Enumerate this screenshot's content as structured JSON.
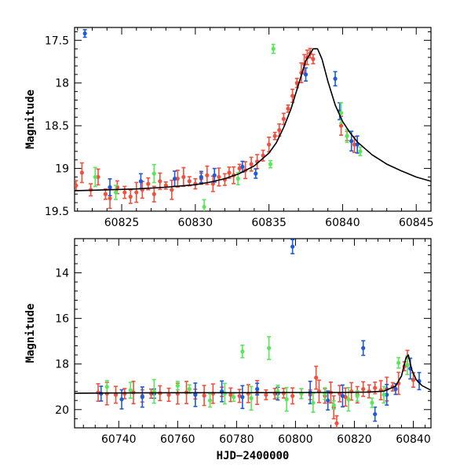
{
  "chart_data": [
    {
      "type": "scatter",
      "panel": "top",
      "xlabel": "",
      "ylabel": "Magnitude",
      "xlim": [
        60821.8,
        60846
      ],
      "ylim": [
        19.5,
        17.35
      ],
      "y_inverted": true,
      "x_ticks": [
        60825,
        60830,
        60835,
        60840,
        60845
      ],
      "y_ticks": [
        17.5,
        18,
        18.5,
        19,
        19.5
      ],
      "y_tick_labels": [
        "17.5",
        "18",
        "18.5",
        "19",
        "19.5"
      ],
      "colors": {
        "red": "#f0503c",
        "blue": "#1e5adc",
        "green": "#5ae65a",
        "model": "#000000"
      },
      "model_curve": {
        "x": [
          60821.8,
          60824,
          60826,
          60828,
          60830,
          60831,
          60832,
          60833,
          60834,
          60835,
          60835.5,
          60836,
          60836.5,
          60837,
          60837.5,
          60838,
          60838.3,
          60838.6,
          60839,
          60839.5,
          60840,
          60840.5,
          60841,
          60842,
          60843,
          60844,
          60845,
          60846
        ],
        "y": [
          19.26,
          19.25,
          19.24,
          19.22,
          19.19,
          19.16,
          19.12,
          19.06,
          18.97,
          18.82,
          18.7,
          18.52,
          18.3,
          18.02,
          17.74,
          17.6,
          17.6,
          17.72,
          17.98,
          18.26,
          18.45,
          18.58,
          18.69,
          18.84,
          18.95,
          19.03,
          19.1,
          19.15
        ]
      },
      "series": [
        {
          "color_key": "red",
          "x": [
            60821.9,
            60822.3,
            60822.9,
            60823.4,
            60823.9,
            60824.2,
            60824.7,
            60825.2,
            60825.6,
            60826,
            60826.4,
            60826.8,
            60827.2,
            60827.6,
            60828,
            60828.4,
            60828.8,
            60829.2,
            60829.6,
            60830,
            60830.4,
            60830.8,
            60831.2,
            60831.6,
            60832,
            60832.3,
            60832.6,
            60833,
            60833.4,
            60833.8,
            60834.2,
            60834.6,
            60835,
            60835.4,
            60835.7,
            60836,
            60836.3,
            60836.6,
            60836.9,
            60837.2,
            60837.4,
            60837.6,
            60837.8,
            60838,
            60839.9,
            60840.3,
            60840.8
          ],
          "y": [
            19.2,
            19.05,
            19.25,
            19.1,
            19.3,
            19.35,
            19.22,
            19.28,
            19.33,
            19.28,
            19.25,
            19.18,
            19.3,
            19.15,
            19.2,
            19.25,
            19.12,
            19.1,
            19.15,
            19.18,
            19.12,
            19.08,
            19.18,
            19.1,
            19.13,
            19.05,
            19.08,
            19.0,
            19.02,
            18.95,
            18.92,
            18.85,
            18.72,
            18.62,
            18.55,
            18.42,
            18.3,
            18.15,
            18.0,
            17.88,
            17.78,
            17.7,
            17.65,
            17.72,
            18.5,
            18.62,
            18.72
          ]
        },
        {
          "color_key": "blue",
          "x": [
            60822.5,
            60824.2,
            60826.3,
            60828.6,
            60830.4,
            60831.3,
            60833.2,
            60834.1,
            60837.5,
            60839.5,
            60839.8,
            60840.6,
            60841
          ],
          "y": [
            17.42,
            19.22,
            19.15,
            19.12,
            19.1,
            19.08,
            18.98,
            19.06,
            17.9,
            17.95,
            18.33,
            18.68,
            18.72
          ]
        },
        {
          "color_key": "green",
          "x": [
            60823.2,
            60824.6,
            60827.2,
            60830.6,
            60832.9,
            60835.1,
            60835.3,
            60839.9,
            60840.3,
            60841.2
          ],
          "y": [
            19.1,
            19.28,
            19.06,
            19.45,
            19.12,
            18.95,
            17.6,
            18.35,
            18.62,
            18.8
          ]
        }
      ]
    },
    {
      "type": "scatter",
      "panel": "bottom",
      "xlabel": "HJD−2400000",
      "ylabel": "Magnitude",
      "xlim": [
        60725,
        60846
      ],
      "ylim": [
        20.8,
        12.5
      ],
      "y_inverted": true,
      "x_ticks": [
        60740,
        60760,
        60780,
        60800,
        60820,
        60840
      ],
      "y_ticks": [
        14,
        16,
        18,
        20
      ],
      "y_tick_labels": [
        "14",
        "16",
        "18",
        "20"
      ],
      "colors": {
        "red": "#f0503c",
        "blue": "#1e5adc",
        "green": "#5ae65a",
        "model": "#000000"
      },
      "model_curve": {
        "x": [
          60725,
          60740,
          60760,
          60780,
          60800,
          60815,
          60825,
          60830,
          60834,
          60836,
          60837.5,
          60838.3,
          60839.5,
          60841,
          60843,
          60846
        ],
        "y": [
          19.28,
          19.27,
          19.26,
          19.26,
          19.25,
          19.25,
          19.23,
          19.19,
          18.97,
          18.52,
          17.74,
          17.6,
          18.26,
          18.69,
          18.95,
          19.15
        ]
      },
      "series": [
        {
          "color_key": "red",
          "x": [
            60733,
            60736,
            60739,
            60742,
            60745,
            60748,
            60751,
            60754,
            60757,
            60760,
            60763,
            60766,
            60769,
            60772,
            60775,
            60778,
            60781,
            60784,
            60787,
            60790,
            60793,
            60796,
            60799,
            60802,
            60805,
            60807,
            60808,
            60810,
            60812,
            60813,
            60814,
            60815,
            60817,
            60819,
            60821,
            60823,
            60825,
            60827,
            60829,
            60831,
            60833,
            60835,
            60837,
            60838,
            60840
          ],
          "y": [
            19.25,
            19.3,
            19.35,
            19.3,
            19.25,
            19.4,
            19.3,
            19.28,
            19.35,
            19.3,
            19.25,
            19.32,
            19.38,
            19.3,
            19.22,
            19.35,
            19.4,
            19.3,
            19.25,
            19.35,
            19.3,
            19.28,
            19.4,
            19.3,
            19.35,
            18.6,
            19.2,
            19.4,
            19.25,
            19.9,
            20.6,
            19.3,
            19.45,
            19.2,
            19.35,
            19.1,
            19.2,
            19.05,
            19.15,
            19.1,
            19.0,
            18.85,
            18.1,
            17.7,
            18.7
          ]
        },
        {
          "color_key": "blue",
          "x": [
            60734,
            60741,
            60748,
            60752,
            60766,
            60775,
            60782,
            60787,
            60794,
            60799,
            60805,
            60811,
            60816,
            60823,
            60827,
            60831,
            60834,
            60839,
            60842
          ],
          "y": [
            19.3,
            19.55,
            19.45,
            19.3,
            19.35,
            19.2,
            19.45,
            19.1,
            19.3,
            12.85,
            19.25,
            19.6,
            19.4,
            17.3,
            20.2,
            19.35,
            19.1,
            18.2,
            18.75
          ]
        },
        {
          "color_key": "green",
          "x": [
            60736,
            60744,
            60752,
            60760,
            60764,
            60771,
            60776,
            60779,
            60782,
            60785,
            60791,
            60794,
            60797,
            60802,
            60806,
            60810,
            60813,
            60818,
            60821,
            60826,
            60830,
            60835,
            60838
          ],
          "y": [
            19.0,
            19.15,
            19.2,
            18.95,
            19.1,
            19.6,
            19.3,
            19.45,
            17.45,
            19.5,
            17.3,
            19.2,
            19.55,
            19.3,
            19.7,
            19.3,
            19.8,
            19.55,
            19.4,
            19.7,
            19.35,
            17.95,
            18.05
          ]
        }
      ]
    }
  ]
}
